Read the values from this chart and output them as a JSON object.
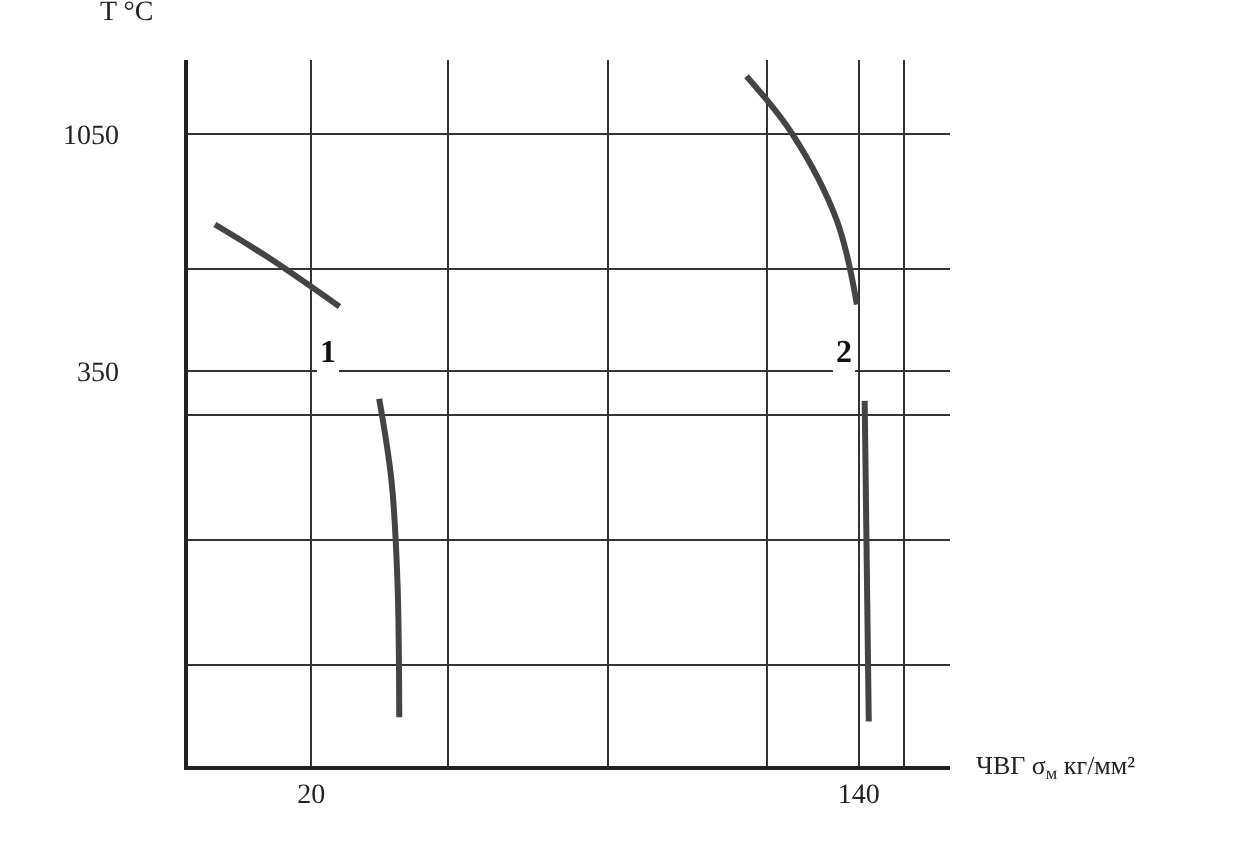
{
  "chart_data": {
    "type": "line",
    "xlabel": "ЧВГ σ$_{м}$ кг/мм²",
    "ylabel": "T °C",
    "xlim": [
      -7,
      160
    ],
    "ylim": [
      -820,
      1270
    ],
    "xticks": [
      20,
      {
        "value": 50,
        "label": null
      },
      {
        "value": 85,
        "label": null
      },
      {
        "value": 120,
        "label": null
      },
      140,
      {
        "value": 150,
        "label": null
      }
    ],
    "yticks": [
      {
        "value": -520,
        "label": null
      },
      {
        "value": -150,
        "label": null
      },
      {
        "value": 220,
        "label": null
      },
      350,
      {
        "value": 650,
        "label": null
      },
      1050
    ],
    "grid": true,
    "legend": false,
    "marker": "none",
    "line_style": "solid",
    "series": [
      {
        "name": "1",
        "color": "#444444",
        "x": [
          -1.1,
          10.3,
          26.2,
          null,
          34.9,
          37.6,
          38.9,
          39.3
        ],
        "values": [
          783,
          688,
          540,
          null,
          267,
          24,
          -273,
          -676
        ]
      },
      {
        "name": "2",
        "color": "#444444",
        "x": [
          115.4,
          125.5,
          135.2,
          139.6,
          null,
          141.3,
          142.2
        ],
        "values": [
          1222,
          1050,
          795,
          546,
          null,
          261,
          -688
        ]
      }
    ]
  }
}
